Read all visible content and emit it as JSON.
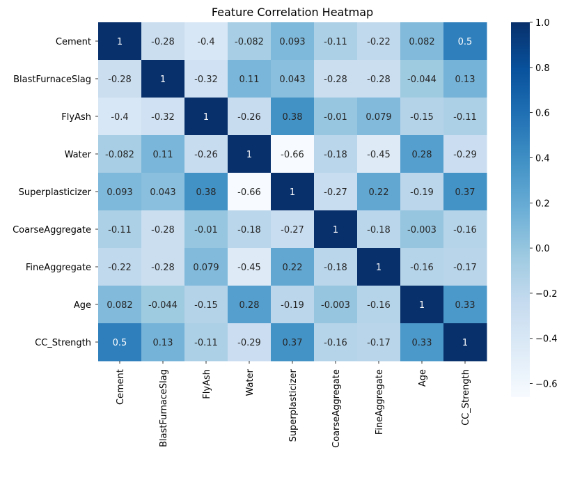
{
  "chart_data": {
    "type": "heatmap",
    "title": "Feature Correlation Heatmap",
    "xlabel": "",
    "ylabel": "",
    "row_labels": [
      "Cement",
      "BlastFurnaceSlag",
      "FlyAsh",
      "Water",
      "Superplasticizer",
      "CoarseAggregate",
      "FineAggregate",
      "Age",
      "CC_Strength"
    ],
    "col_labels": [
      "Cement",
      "BlastFurnaceSlag",
      "FlyAsh",
      "Water",
      "Superplasticizer",
      "CoarseAggregate",
      "FineAggregate",
      "Age",
      "CC_Strength"
    ],
    "values": [
      [
        1,
        -0.28,
        -0.4,
        -0.082,
        0.093,
        -0.11,
        -0.22,
        0.082,
        0.5
      ],
      [
        -0.28,
        1,
        -0.32,
        0.11,
        0.043,
        -0.28,
        -0.28,
        -0.044,
        0.13
      ],
      [
        -0.4,
        -0.32,
        1,
        -0.26,
        0.38,
        -0.01,
        0.079,
        -0.15,
        -0.11
      ],
      [
        -0.082,
        0.11,
        -0.26,
        1,
        -0.66,
        -0.18,
        -0.45,
        0.28,
        -0.29
      ],
      [
        0.093,
        0.043,
        0.38,
        -0.66,
        1,
        -0.27,
        0.22,
        -0.19,
        0.37
      ],
      [
        -0.11,
        -0.28,
        -0.01,
        -0.18,
        -0.27,
        1,
        -0.18,
        -0.003,
        -0.16
      ],
      [
        -0.22,
        -0.28,
        0.079,
        -0.45,
        0.22,
        -0.18,
        1,
        -0.16,
        -0.17
      ],
      [
        0.082,
        -0.044,
        -0.15,
        0.28,
        -0.19,
        -0.003,
        -0.16,
        1,
        0.33
      ],
      [
        0.5,
        0.13,
        -0.11,
        -0.29,
        0.37,
        -0.16,
        -0.17,
        0.33,
        1
      ]
    ],
    "annotations": [
      [
        "1",
        "-0.28",
        "-0.4",
        "-0.082",
        "0.093",
        "-0.11",
        "-0.22",
        "0.082",
        "0.5"
      ],
      [
        "-0.28",
        "1",
        "-0.32",
        "0.11",
        "0.043",
        "-0.28",
        "-0.28",
        "-0.044",
        "0.13"
      ],
      [
        "-0.4",
        "-0.32",
        "1",
        "-0.26",
        "0.38",
        "-0.01",
        "0.079",
        "-0.15",
        "-0.11"
      ],
      [
        "-0.082",
        "0.11",
        "-0.26",
        "1",
        "-0.66",
        "-0.18",
        "-0.45",
        "0.28",
        "-0.29"
      ],
      [
        "0.093",
        "0.043",
        "0.38",
        "-0.66",
        "1",
        "-0.27",
        "0.22",
        "-0.19",
        "0.37"
      ],
      [
        "-0.11",
        "-0.28",
        "-0.01",
        "-0.18",
        "-0.27",
        "1",
        "-0.18",
        "-0.003",
        "-0.16"
      ],
      [
        "-0.22",
        "-0.28",
        "0.079",
        "-0.45",
        "0.22",
        "-0.18",
        "1",
        "-0.16",
        "-0.17"
      ],
      [
        "0.082",
        "-0.044",
        "-0.15",
        "0.28",
        "-0.19",
        "-0.003",
        "-0.16",
        "1",
        "0.33"
      ],
      [
        "0.5",
        "0.13",
        "-0.11",
        "-0.29",
        "0.37",
        "-0.16",
        "-0.17",
        "0.33",
        "1"
      ]
    ],
    "colormap": "Blues",
    "colormap_stops": [
      "#f7fbff",
      "#deebf7",
      "#c6dbef",
      "#9ecae1",
      "#6baed6",
      "#4292c6",
      "#2171b5",
      "#08519c",
      "#08306b"
    ],
    "vmin": -0.66,
    "vmax": 1,
    "colorbar": {
      "ticks": [
        1.0,
        0.8,
        0.6,
        0.4,
        0.2,
        0.0,
        -0.2,
        -0.4,
        -0.6
      ],
      "tick_labels": [
        "1.0",
        "0.8",
        "0.6",
        "0.4",
        "0.2",
        "0.0",
        "−0.2",
        "−0.4",
        "−0.6"
      ],
      "placement": "right"
    },
    "grid": false
  }
}
